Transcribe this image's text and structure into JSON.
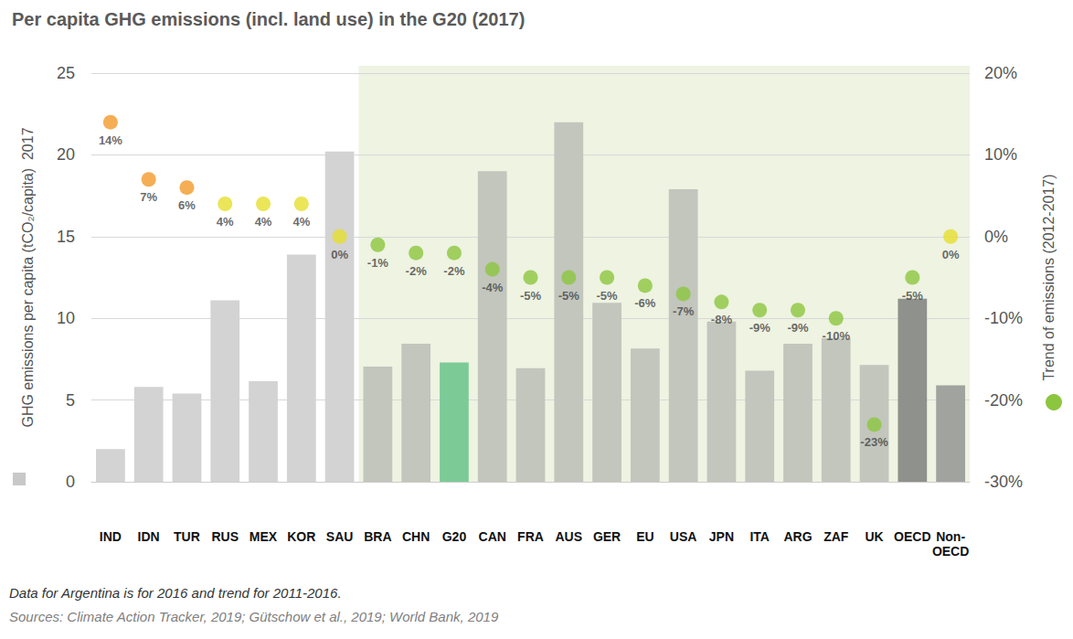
{
  "chart_data": {
    "type": "bar",
    "title": "Per capita GHG emissions (incl. land use) in the G20 (2017)",
    "ylabel": "GHG emissions per capita (tCO₂/capita)  2017",
    "y2label": "Trend of emissions (2012-2017)",
    "categories": [
      "IND",
      "IDN",
      "TUR",
      "RUS",
      "MEX",
      "KOR",
      "SAU",
      "BRA",
      "CHN",
      "G20",
      "CAN",
      "FRA",
      "AUS",
      "GER",
      "EU",
      "USA",
      "JPN",
      "ITA",
      "ARG",
      "ZAF",
      "UK",
      "OECD",
      "Non-\nOECD"
    ],
    "series": [
      {
        "type": "bar",
        "values": [
          2.0,
          5.8,
          5.4,
          11.1,
          6.15,
          13.9,
          20.2,
          7.05,
          8.45,
          7.3,
          19.0,
          6.95,
          22.0,
          10.95,
          8.15,
          17.9,
          9.8,
          6.8,
          8.45,
          8.8,
          7.15,
          11.2,
          5.9
        ],
        "colors": [
          "#d3d3d3",
          "#d3d3d3",
          "#d3d3d3",
          "#d3d3d3",
          "#d3d3d3",
          "#d3d3d3",
          "#d3d3d3",
          "#c2c6bd",
          "#c2c6bd",
          "#7ccb97",
          "#c2c6bd",
          "#c2c6bd",
          "#c2c6bd",
          "#c2c6bd",
          "#c2c6bd",
          "#c2c6bd",
          "#c2c6bd",
          "#c2c6bd",
          "#c2c6bd",
          "#c2c6bd",
          "#c2c6bd",
          "#8e918c",
          "#a0a39e"
        ]
      },
      {
        "type": "scatter",
        "axis": "y2",
        "data_labels": true,
        "values": [
          14,
          7,
          6,
          4,
          4,
          4,
          0,
          -1,
          -2,
          -2,
          -4,
          -5,
          -5,
          -5,
          -6,
          -7,
          -8,
          -9,
          -9,
          -10,
          -23,
          -5,
          0
        ],
        "value_labels": [
          "14%",
          "7%",
          "6%",
          "4%",
          "4%",
          "4%",
          "0%",
          "-1%",
          "-2%",
          "-2%",
          "-4%",
          "-5%",
          "-5%",
          "-5%",
          "-6%",
          "-7%",
          "-8%",
          "-9%",
          "-9%",
          "-10%",
          "-23%",
          "-5%",
          "0%"
        ],
        "colors": [
          "#f39a2b",
          "#f39a2b",
          "#f39a2b",
          "#e6df2e",
          "#e6df2e",
          "#e6df2e",
          "#e6df2e",
          "#8cc63f",
          "#8cc63f",
          "#8cc63f",
          "#8cc63f",
          "#8cc63f",
          "#8cc63f",
          "#8cc63f",
          "#8cc63f",
          "#8cc63f",
          "#8cc63f",
          "#8cc63f",
          "#8cc63f",
          "#8cc63f",
          "#8cc63f",
          "#8cc63f",
          "#e6df2e"
        ]
      }
    ],
    "ylim": [
      0,
      25
    ],
    "yticks": [
      0,
      5,
      10,
      15,
      20,
      25
    ],
    "y2lim": [
      -30,
      20
    ],
    "y2ticks": [
      {
        "value": -30,
        "label": "-30%"
      },
      {
        "value": -20,
        "label": "-20%"
      },
      {
        "value": -10,
        "label": "-10%"
      },
      {
        "value": 0,
        "label": "0%"
      },
      {
        "value": 10,
        "label": "10%"
      },
      {
        "value": 20,
        "label": "20%"
      }
    ],
    "grid": true,
    "annotations": [
      "Data for Argentina is for 2016 and trend for 2011-2016.",
      "Sources: Climate Action Tracker, 2019; Gütschow et al., 2019; World Bank, 2019"
    ]
  }
}
